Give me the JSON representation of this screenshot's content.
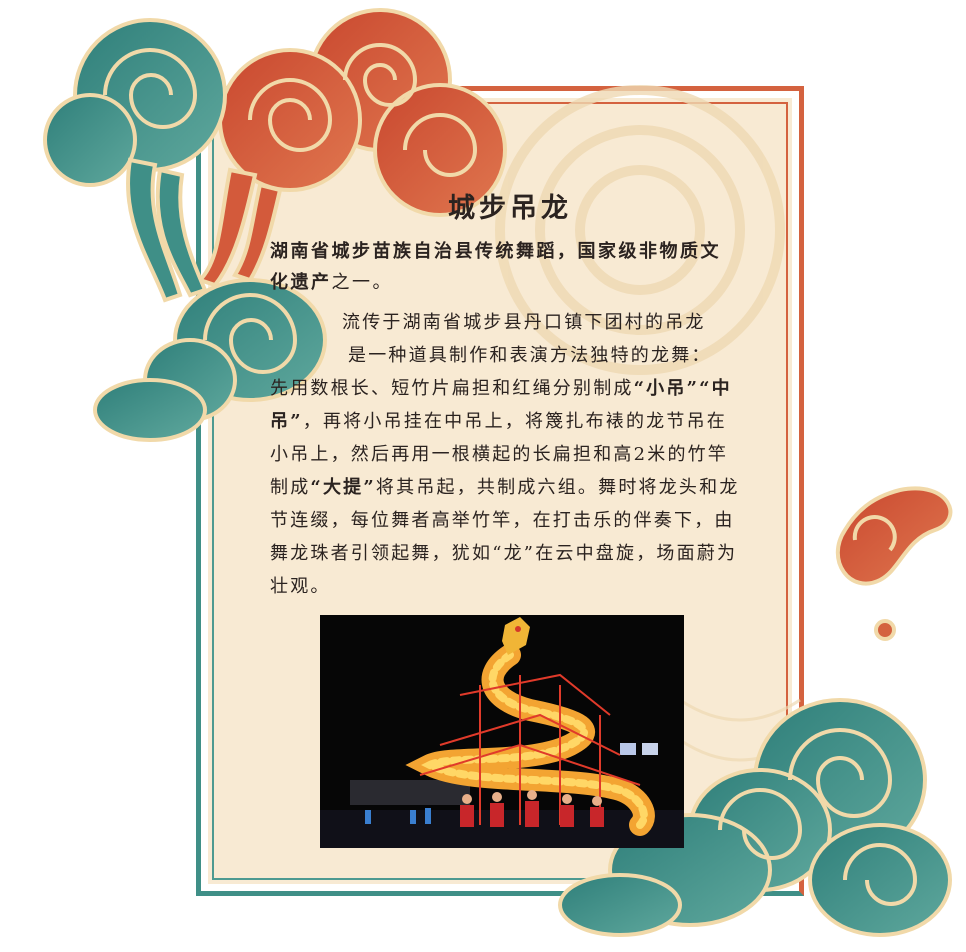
{
  "article": {
    "title": "城步吊龙",
    "intro_bold": "湖南省城步苗族自治县传统舞蹈，国家级非物质文化遗产",
    "intro_rest": "之一。",
    "para_1": "流传于湖南省城步县丹口镇下团村的吊龙",
    "para_2": "是一种道具制作和表演方法独特的龙舞：",
    "para_3a": "先用数根长、短竹片扁担和红绳分别制成",
    "term_1": "“小吊”",
    "term_2": "“中吊”",
    "para_3b": "，再将小吊挂在中吊上，将篾扎布裱的龙节吊在小吊上，然后再用一根横起的长扁担和高2米的竹竿制成",
    "term_3": "“大提”",
    "para_3c": "将其吊起，共制成六组。舞时将龙头和龙节连缀，每位舞者高举竹竿，在打击乐的伴奏下，由舞龙珠者引领起舞，犹如“龙”在云中盘旋，场面蔚为壮观。"
  },
  "colors": {
    "background": "#f8ead3",
    "cloud_red": "#d4623f",
    "cloud_teal": "#3f8f87",
    "text": "#2b2320"
  }
}
